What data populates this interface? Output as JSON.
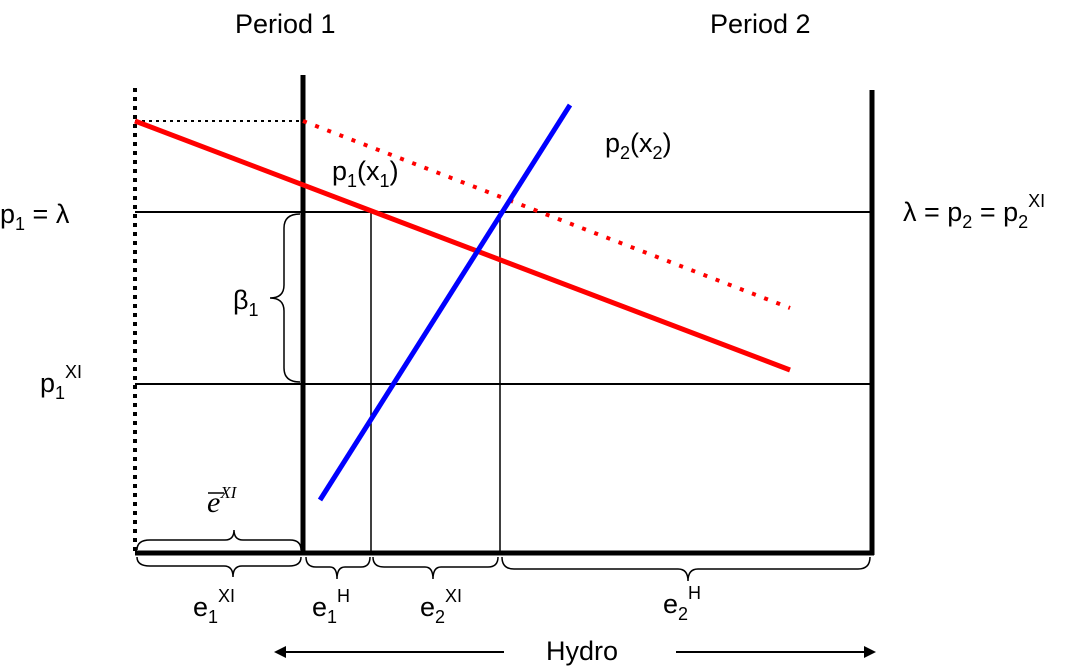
{
  "headers": {
    "period1": "Period 1",
    "period2": "Period 2"
  },
  "labels": {
    "p1_lambda": {
      "base": "p",
      "sub": "1",
      "tail": " = λ"
    },
    "lambda_p2": {
      "head": "λ = p",
      "sub": "2",
      "mid": " = p",
      "sub2": "2",
      "sup": "XI"
    },
    "p1_xi": {
      "base": "p",
      "sub": "1",
      "sup": "XI"
    },
    "beta1": {
      "base": "β",
      "sub": "1"
    },
    "p1_x1": {
      "base": "p",
      "sub": "1",
      "paren_open": "(x",
      "sub2": "1",
      "paren_close": ")"
    },
    "p2_x2": {
      "base": "p",
      "sub": "2",
      "paren_open": "(x",
      "sub2": "2",
      "paren_close": ")"
    },
    "ebar_xi": {
      "base": "e",
      "sup": "XI"
    },
    "e1_xi": {
      "base": "e",
      "sub": "1",
      "sup": "XI"
    },
    "e1_h": {
      "base": "e",
      "sub": "1",
      "sup": "H"
    },
    "e2_xi": {
      "base": "e",
      "sub": "2",
      "sup": "XI"
    },
    "e2_h": {
      "base": "e",
      "sub": "2",
      "sup": "H"
    },
    "hydro": "Hydro"
  },
  "colors": {
    "demand_curve": "#ff0000",
    "supply_curve": "#0000ff",
    "axes": "#000000"
  }
}
